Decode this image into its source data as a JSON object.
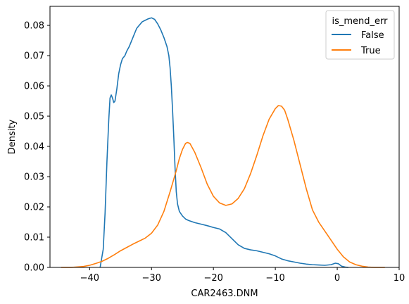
{
  "chart_data": {
    "type": "line",
    "title": "",
    "xlabel": "CAR2463.DNM",
    "ylabel": "Density",
    "xlim": [
      -46.4,
      10.0
    ],
    "ylim": [
      0,
      0.0863
    ],
    "x_ticks": [
      -40,
      -30,
      -20,
      -10,
      0,
      10
    ],
    "x_tick_labels": [
      "−40",
      "−30",
      "−20",
      "−10",
      "0",
      "10"
    ],
    "y_ticks": [
      0.0,
      0.01,
      0.02,
      0.03,
      0.04,
      0.05,
      0.06,
      0.07,
      0.08
    ],
    "y_tick_labels": [
      "0.00",
      "0.01",
      "0.02",
      "0.03",
      "0.04",
      "0.05",
      "0.06",
      "0.07",
      "0.08"
    ],
    "grid": false,
    "legend": {
      "title": "is_mend_err",
      "placement": "top-right"
    },
    "series": [
      {
        "name": "False",
        "color": "#1f77b4",
        "points": [
          [
            -38.3,
            0.0
          ],
          [
            -37.8,
            0.006
          ],
          [
            -37.5,
            0.018
          ],
          [
            -37.2,
            0.035
          ],
          [
            -36.9,
            0.049
          ],
          [
            -36.7,
            0.056
          ],
          [
            -36.5,
            0.057
          ],
          [
            -36.3,
            0.056
          ],
          [
            -36.1,
            0.0545
          ],
          [
            -35.9,
            0.055
          ],
          [
            -35.6,
            0.059
          ],
          [
            -35.3,
            0.064
          ],
          [
            -35.0,
            0.067
          ],
          [
            -34.7,
            0.069
          ],
          [
            -34.3,
            0.07
          ],
          [
            -34.0,
            0.0715
          ],
          [
            -33.6,
            0.073
          ],
          [
            -33.2,
            0.075
          ],
          [
            -32.8,
            0.077
          ],
          [
            -32.4,
            0.079
          ],
          [
            -32.0,
            0.08
          ],
          [
            -31.5,
            0.0812
          ],
          [
            -31.0,
            0.0817
          ],
          [
            -30.5,
            0.0822
          ],
          [
            -30.0,
            0.0825
          ],
          [
            -29.5,
            0.082
          ],
          [
            -29.0,
            0.0805
          ],
          [
            -28.5,
            0.0785
          ],
          [
            -28.0,
            0.076
          ],
          [
            -27.5,
            0.073
          ],
          [
            -27.2,
            0.07
          ],
          [
            -27.0,
            0.066
          ],
          [
            -26.8,
            0.06
          ],
          [
            -26.6,
            0.052
          ],
          [
            -26.4,
            0.043
          ],
          [
            -26.2,
            0.033
          ],
          [
            -26.0,
            0.025
          ],
          [
            -25.8,
            0.021
          ],
          [
            -25.5,
            0.0185
          ],
          [
            -25.0,
            0.017
          ],
          [
            -24.5,
            0.016
          ],
          [
            -24.0,
            0.0155
          ],
          [
            -23.0,
            0.0148
          ],
          [
            -22.0,
            0.0143
          ],
          [
            -21.0,
            0.0138
          ],
          [
            -20.0,
            0.0132
          ],
          [
            -19.0,
            0.0127
          ],
          [
            -18.0,
            0.0115
          ],
          [
            -17.0,
            0.0095
          ],
          [
            -16.0,
            0.0075
          ],
          [
            -15.0,
            0.0063
          ],
          [
            -14.0,
            0.0058
          ],
          [
            -13.0,
            0.0055
          ],
          [
            -12.0,
            0.005
          ],
          [
            -11.0,
            0.0045
          ],
          [
            -10.0,
            0.0038
          ],
          [
            -9.0,
            0.0028
          ],
          [
            -8.0,
            0.0022
          ],
          [
            -7.0,
            0.0018
          ],
          [
            -6.0,
            0.0014
          ],
          [
            -5.0,
            0.0011
          ],
          [
            -4.0,
            0.0009
          ],
          [
            -3.0,
            0.0008
          ],
          [
            -2.0,
            0.0007
          ],
          [
            -1.0,
            0.0009
          ],
          [
            -0.3,
            0.0014
          ],
          [
            0.2,
            0.0012
          ],
          [
            0.7,
            0.0004
          ],
          [
            1.3,
            0.0001
          ],
          [
            1.8,
            0.0
          ]
        ]
      },
      {
        "name": "True",
        "color": "#ff7f0e",
        "points": [
          [
            -44.6,
            0.0
          ],
          [
            -43.0,
            0.0
          ],
          [
            -41.0,
            0.0003
          ],
          [
            -40.0,
            0.0007
          ],
          [
            -39.0,
            0.0013
          ],
          [
            -38.0,
            0.002
          ],
          [
            -37.0,
            0.003
          ],
          [
            -36.0,
            0.0042
          ],
          [
            -35.0,
            0.0055
          ],
          [
            -34.0,
            0.0066
          ],
          [
            -33.0,
            0.0077
          ],
          [
            -32.0,
            0.0087
          ],
          [
            -31.0,
            0.0097
          ],
          [
            -30.0,
            0.0113
          ],
          [
            -29.0,
            0.014
          ],
          [
            -28.0,
            0.0185
          ],
          [
            -27.0,
            0.025
          ],
          [
            -26.0,
            0.032
          ],
          [
            -25.5,
            0.036
          ],
          [
            -25.0,
            0.039
          ],
          [
            -24.5,
            0.041
          ],
          [
            -24.2,
            0.0413
          ],
          [
            -23.8,
            0.041
          ],
          [
            -23.0,
            0.038
          ],
          [
            -22.0,
            0.033
          ],
          [
            -21.0,
            0.0275
          ],
          [
            -20.0,
            0.0235
          ],
          [
            -19.0,
            0.0213
          ],
          [
            -18.0,
            0.0205
          ],
          [
            -17.0,
            0.021
          ],
          [
            -16.0,
            0.0228
          ],
          [
            -15.0,
            0.026
          ],
          [
            -14.0,
            0.031
          ],
          [
            -13.0,
            0.037
          ],
          [
            -12.0,
            0.0435
          ],
          [
            -11.0,
            0.049
          ],
          [
            -10.0,
            0.0525
          ],
          [
            -9.5,
            0.0535
          ],
          [
            -9.0,
            0.0533
          ],
          [
            -8.5,
            0.052
          ],
          [
            -8.0,
            0.049
          ],
          [
            -7.0,
            0.042
          ],
          [
            -6.0,
            0.034
          ],
          [
            -5.0,
            0.026
          ],
          [
            -4.0,
            0.019
          ],
          [
            -3.0,
            0.015
          ],
          [
            -2.0,
            0.012
          ],
          [
            -1.0,
            0.009
          ],
          [
            0.0,
            0.006
          ],
          [
            1.0,
            0.0035
          ],
          [
            2.0,
            0.0018
          ],
          [
            3.0,
            0.0009
          ],
          [
            4.0,
            0.0004
          ],
          [
            5.0,
            0.0001
          ],
          [
            6.0,
            0.0
          ],
          [
            7.7,
            0.0
          ]
        ]
      }
    ]
  }
}
